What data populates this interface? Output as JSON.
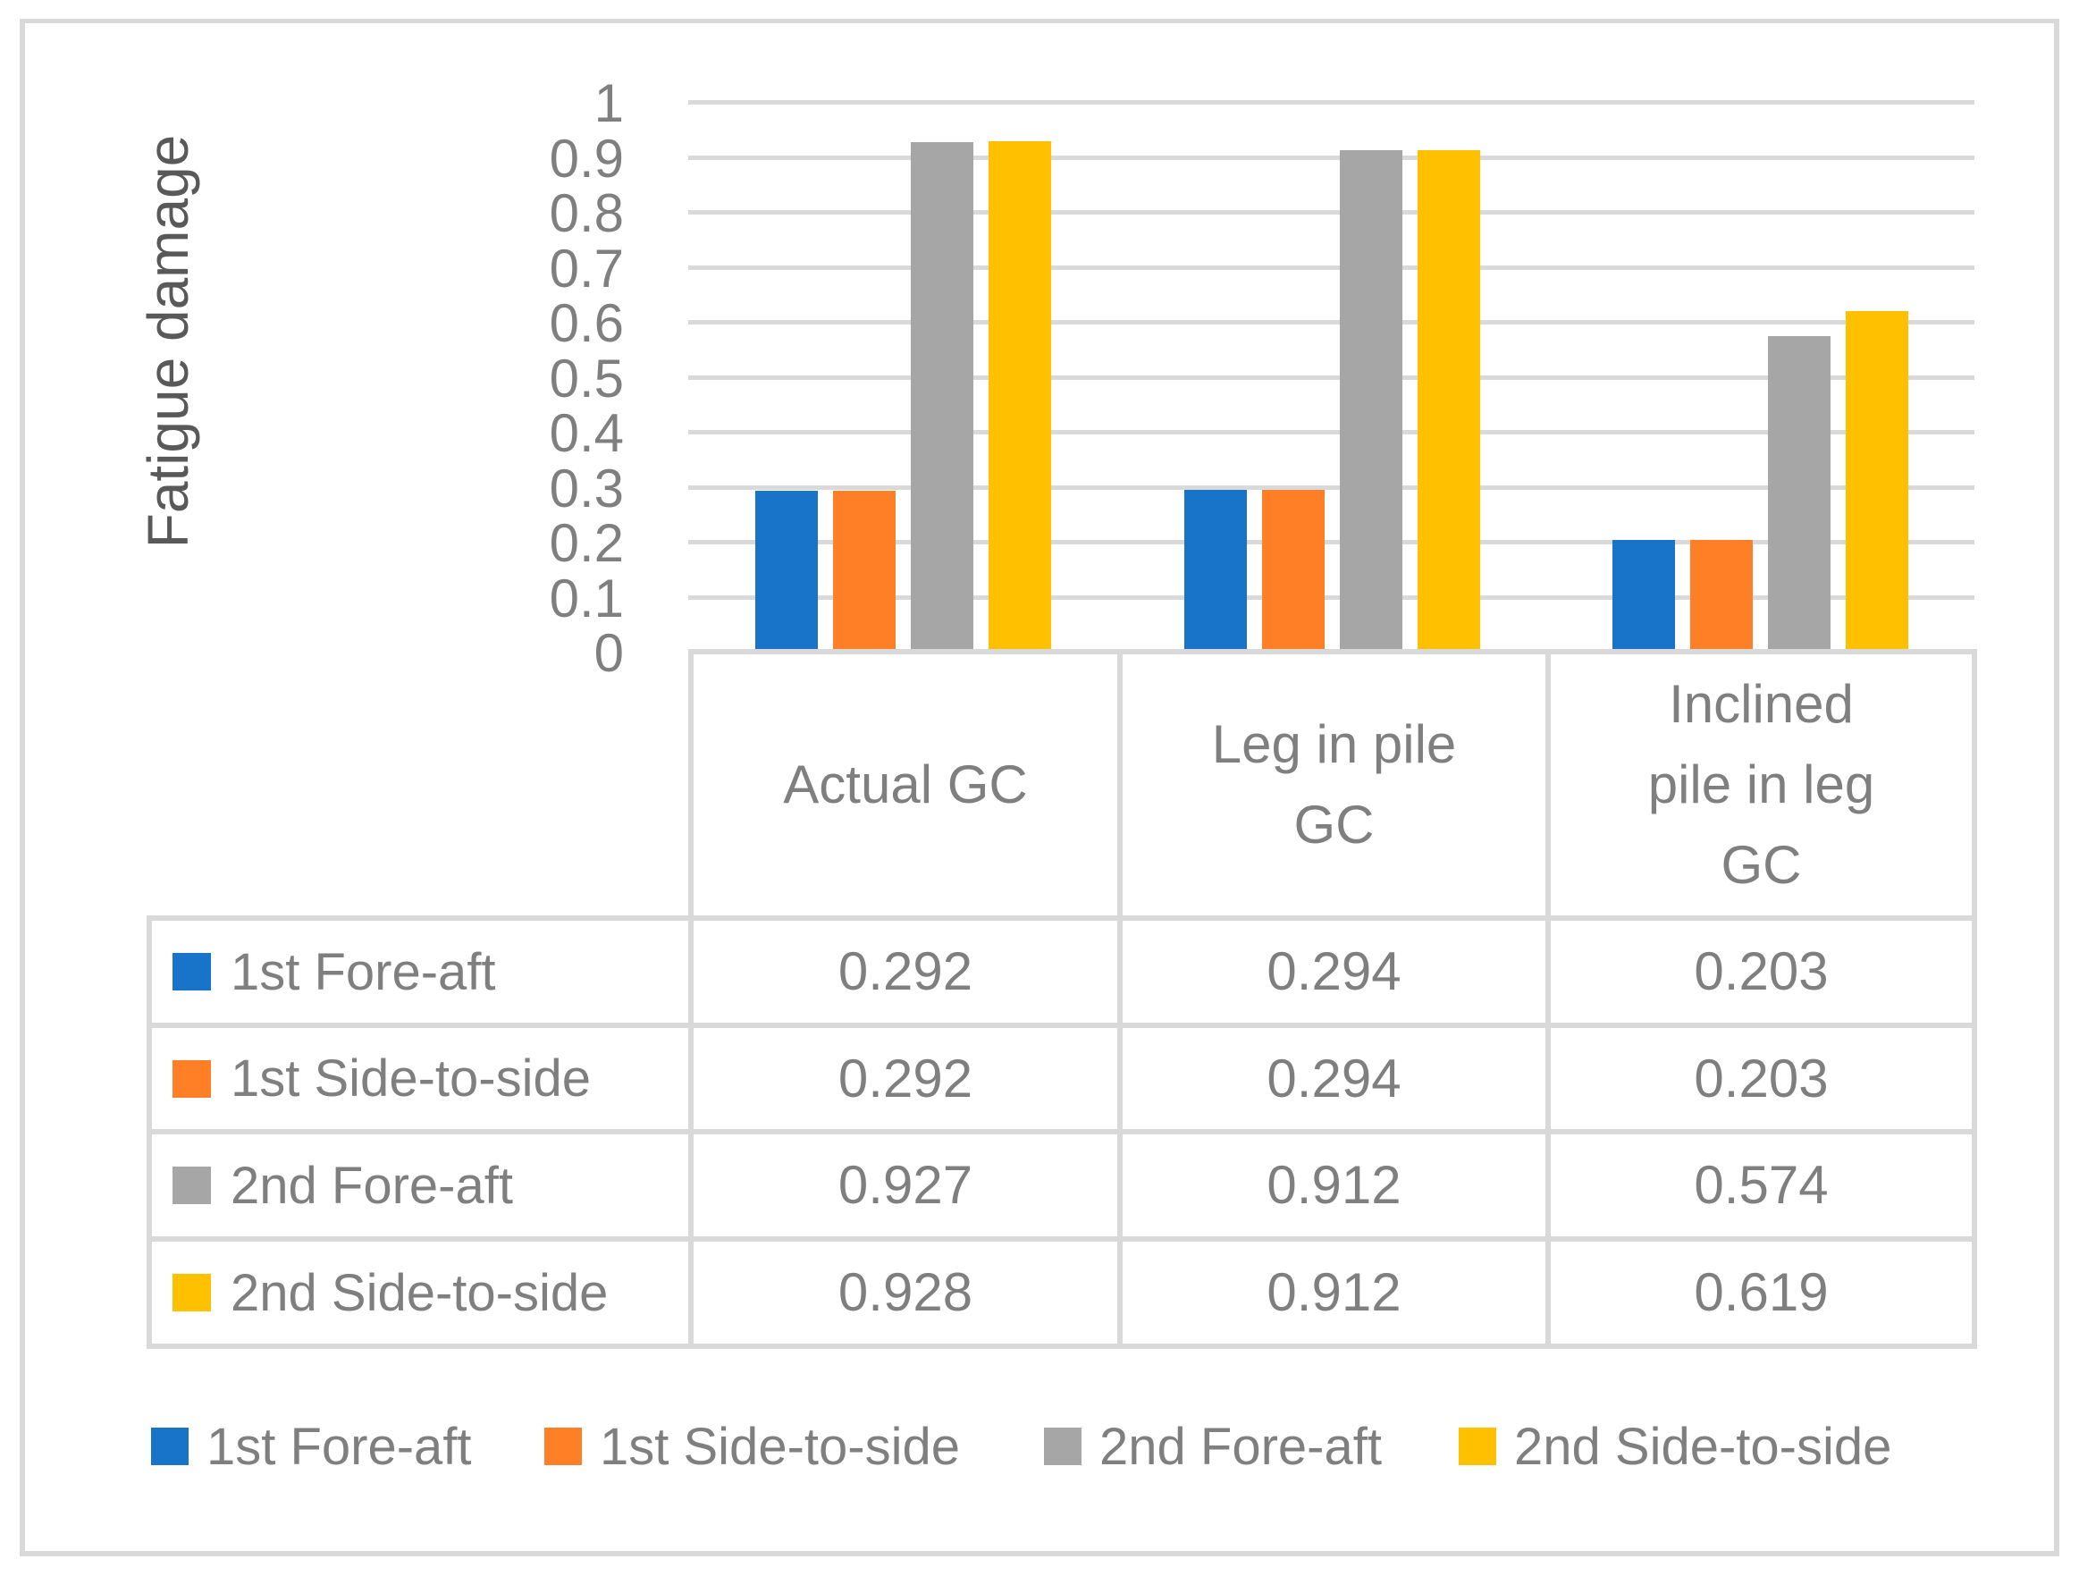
{
  "chart_data": {
    "type": "bar",
    "title": "",
    "xlabel": "",
    "ylabel": "Fatigue damage",
    "ylim": [
      0,
      1
    ],
    "yticks": [
      "0",
      "0.1",
      "0.2",
      "0.3",
      "0.4",
      "0.5",
      "0.6",
      "0.7",
      "0.8",
      "0.9",
      "1"
    ],
    "grid": true,
    "legend_position": "bottom",
    "data_table": true,
    "categories": [
      "Actual GC",
      "Leg in pile GC",
      "Inclined pile in leg GC"
    ],
    "category_lines": [
      [
        "Actual GC"
      ],
      [
        "Leg in pile",
        "GC"
      ],
      [
        "Inclined",
        "pile in leg",
        "GC"
      ]
    ],
    "series": [
      {
        "name": "1st Fore-aft",
        "color": "#1874C8",
        "values": [
          0.292,
          0.294,
          0.203
        ],
        "labels": [
          "0.292",
          "0.294",
          "0.203"
        ]
      },
      {
        "name": "1st Side-to-side",
        "color": "#FF7F27",
        "values": [
          0.292,
          0.294,
          0.203
        ],
        "labels": [
          "0.292",
          "0.294",
          "0.203"
        ]
      },
      {
        "name": "2nd Fore-aft",
        "color": "#A6A6A6",
        "values": [
          0.927,
          0.912,
          0.574
        ],
        "labels": [
          "0.927",
          "0.912",
          "0.574"
        ]
      },
      {
        "name": "2nd Side-to-side",
        "color": "#FFC000",
        "values": [
          0.928,
          0.912,
          0.619
        ],
        "labels": [
          "0.928",
          "0.912",
          "0.619"
        ]
      }
    ]
  },
  "colors": {
    "gridline": "#D9D9D9",
    "axis_text": "#7F7F7F",
    "title_text": "#595959"
  }
}
